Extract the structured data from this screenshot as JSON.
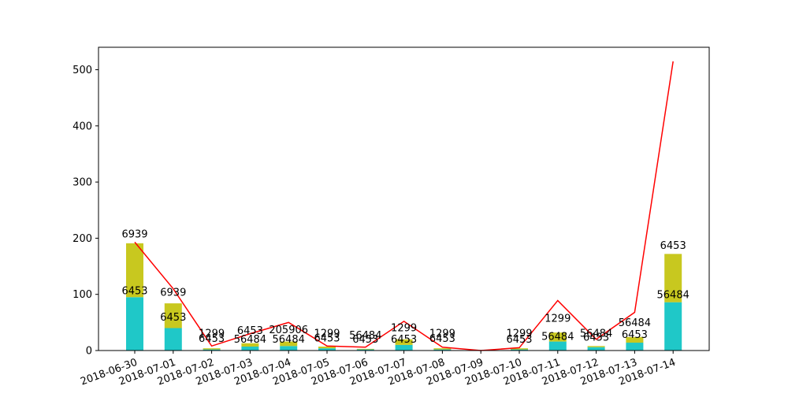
{
  "chart_data": {
    "type": "bar",
    "stacked": true,
    "categories": [
      "2018-06-30",
      "2018-07-01",
      "2018-07-02",
      "2018-07-03",
      "2018-07-04",
      "2018-07-05",
      "2018-07-06",
      "2018-07-07",
      "2018-07-08",
      "2018-07-09",
      "2018-07-10",
      "2018-07-11",
      "2018-07-12",
      "2018-07-13",
      "2018-07-14"
    ],
    "ylim": [
      0,
      540
    ],
    "yticks": [
      0,
      100,
      200,
      300,
      400,
      500
    ],
    "grid": false,
    "series": [
      {
        "color": "#1fc8c8",
        "values": [
          95,
          40,
          2,
          7,
          8,
          4,
          2,
          10,
          2,
          0,
          2,
          16,
          6,
          14,
          86
        ]
      },
      {
        "color": "#c8c81f",
        "values": [
          96,
          44,
          2,
          6,
          8,
          3,
          1,
          10,
          2,
          0,
          2,
          16,
          2,
          10,
          86
        ]
      }
    ],
    "line": {
      "color": "#ff0000",
      "values": [
        193,
        110,
        8,
        30,
        50,
        8,
        6,
        52,
        6,
        0,
        5,
        89,
        20,
        68,
        515
      ]
    },
    "data_labels": [
      {
        "category": 0,
        "y": 96,
        "text": "6453"
      },
      {
        "category": 0,
        "y": 197,
        "text": "6939"
      },
      {
        "category": 1,
        "y": 49,
        "text": "6453"
      },
      {
        "category": 1,
        "y": 93,
        "text": "6939"
      },
      {
        "category": 2,
        "y": 11,
        "text": "6453"
      },
      {
        "category": 2,
        "y": 20,
        "text": "1299"
      },
      {
        "category": 3,
        "y": 10,
        "text": "56484"
      },
      {
        "category": 3,
        "y": 25,
        "text": "6453"
      },
      {
        "category": 4,
        "y": 10,
        "text": "56484"
      },
      {
        "category": 4,
        "y": 27,
        "text": "205906"
      },
      {
        "category": 5,
        "y": 12,
        "text": "6453"
      },
      {
        "category": 5,
        "y": 20,
        "text": "1299"
      },
      {
        "category": 6,
        "y": 10,
        "text": "6453"
      },
      {
        "category": 6,
        "y": 17,
        "text": "56484"
      },
      {
        "category": 7,
        "y": 10,
        "text": "6453"
      },
      {
        "category": 7,
        "y": 30,
        "text": "1299"
      },
      {
        "category": 8,
        "y": 11,
        "text": "6453"
      },
      {
        "category": 8,
        "y": 20,
        "text": "1299"
      },
      {
        "category": 10,
        "y": 10,
        "text": "6453"
      },
      {
        "category": 10,
        "y": 20,
        "text": "1299"
      },
      {
        "category": 11,
        "y": 15,
        "text": "56484"
      },
      {
        "category": 11,
        "y": 47,
        "text": "1299"
      },
      {
        "category": 12,
        "y": 13,
        "text": "6453"
      },
      {
        "category": 12,
        "y": 20,
        "text": "56484"
      },
      {
        "category": 13,
        "y": 18,
        "text": "6453"
      },
      {
        "category": 13,
        "y": 39,
        "text": "56484"
      },
      {
        "category": 14,
        "y": 89,
        "text": "56484"
      },
      {
        "category": 14,
        "y": 177,
        "text": "6453"
      }
    ]
  }
}
